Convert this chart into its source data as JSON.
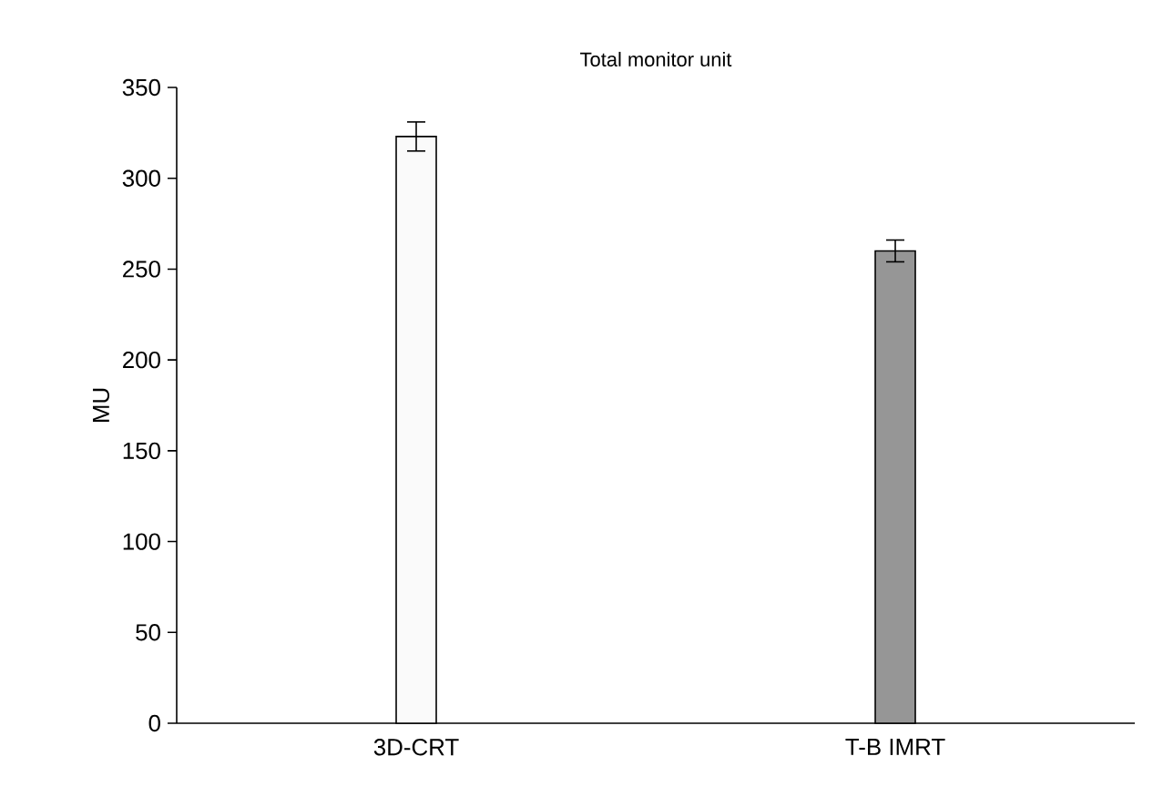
{
  "chart_data": {
    "type": "bar",
    "title": "Total monitor unit",
    "ylabel": "MU",
    "categories": [
      "3D-CRT",
      "T-B IMRT"
    ],
    "values": [
      323,
      260
    ],
    "errors": [
      8,
      6
    ],
    "colors": [
      "#fafafa",
      "#969696"
    ],
    "ylim": [
      0,
      350
    ],
    "yticks": [
      0,
      50,
      100,
      150,
      200,
      250,
      300,
      350
    ],
    "grid": false
  }
}
